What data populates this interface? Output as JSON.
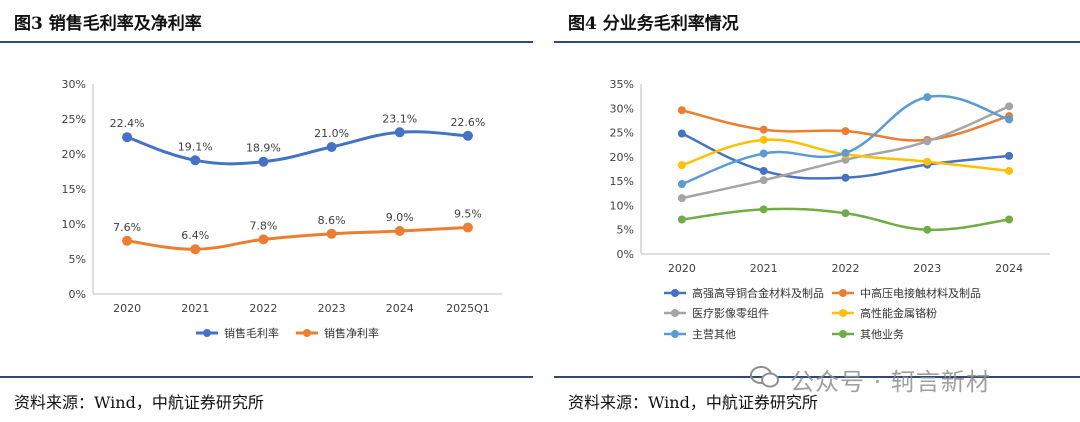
{
  "figures": [
    {
      "title": "图3 销售毛利率及净利率",
      "source": "资料来源：Wind，中航证券研究所"
    },
    {
      "title": "图4 分业务毛利率情况",
      "source": "资料来源：Wind，中航证券研究所"
    }
  ],
  "watermark": "公众号 · 轲言新材",
  "chart_data": [
    {
      "type": "line",
      "categories": [
        "2020",
        "2021",
        "2022",
        "2023",
        "2024",
        "2025Q1"
      ],
      "ylim": [
        0,
        30
      ],
      "yticks": [
        0,
        5,
        10,
        15,
        20,
        25,
        30
      ],
      "ytick_labels": [
        "0%",
        "5%",
        "10%",
        "15%",
        "20%",
        "25%",
        "30%"
      ],
      "legend_position": "bottom",
      "grid": false,
      "series": [
        {
          "name": "销售毛利率",
          "color": "#4472c4",
          "values": [
            22.4,
            19.1,
            18.9,
            21.0,
            23.1,
            22.6
          ],
          "labels": [
            "22.4%",
            "19.1%",
            "18.9%",
            "21.0%",
            "23.1%",
            "22.6%"
          ]
        },
        {
          "name": "销售净利率",
          "color": "#ed7d31",
          "values": [
            7.6,
            6.4,
            7.8,
            8.6,
            9.0,
            9.5
          ],
          "labels": [
            "7.6%",
            "6.4%",
            "7.8%",
            "8.6%",
            "9.0%",
            "9.5%"
          ]
        }
      ]
    },
    {
      "type": "line",
      "categories": [
        "2020",
        "2021",
        "2022",
        "2023",
        "2024"
      ],
      "ylim": [
        0,
        35
      ],
      "yticks": [
        0,
        5,
        10,
        15,
        20,
        25,
        30,
        35
      ],
      "ytick_labels": [
        "0%",
        "5%",
        "10%",
        "15%",
        "20%",
        "25%",
        "30%",
        "35%"
      ],
      "legend_position": "bottom",
      "grid": false,
      "series": [
        {
          "name": "高强高导铜合金材料及制品",
          "color": "#4472c4",
          "values": [
            24.8,
            17.1,
            15.7,
            18.4,
            20.2
          ]
        },
        {
          "name": "中高压电接触材料及制品",
          "color": "#ed7d31",
          "values": [
            29.6,
            25.6,
            25.3,
            23.5,
            28.4
          ]
        },
        {
          "name": "医疗影像零组件",
          "color": "#a5a5a5",
          "values": [
            11.5,
            15.2,
            19.4,
            23.2,
            30.4
          ]
        },
        {
          "name": "高性能金属铬粉",
          "color": "#ffc000",
          "values": [
            18.3,
            23.5,
            20.5,
            19.0,
            17.1
          ]
        },
        {
          "name": "主营其他",
          "color": "#5b9bd5",
          "values": [
            14.4,
            20.7,
            20.8,
            32.3,
            27.7
          ]
        },
        {
          "name": "其他业务",
          "color": "#70ad47",
          "values": [
            7.1,
            9.2,
            8.4,
            5.0,
            7.1
          ]
        }
      ]
    }
  ]
}
